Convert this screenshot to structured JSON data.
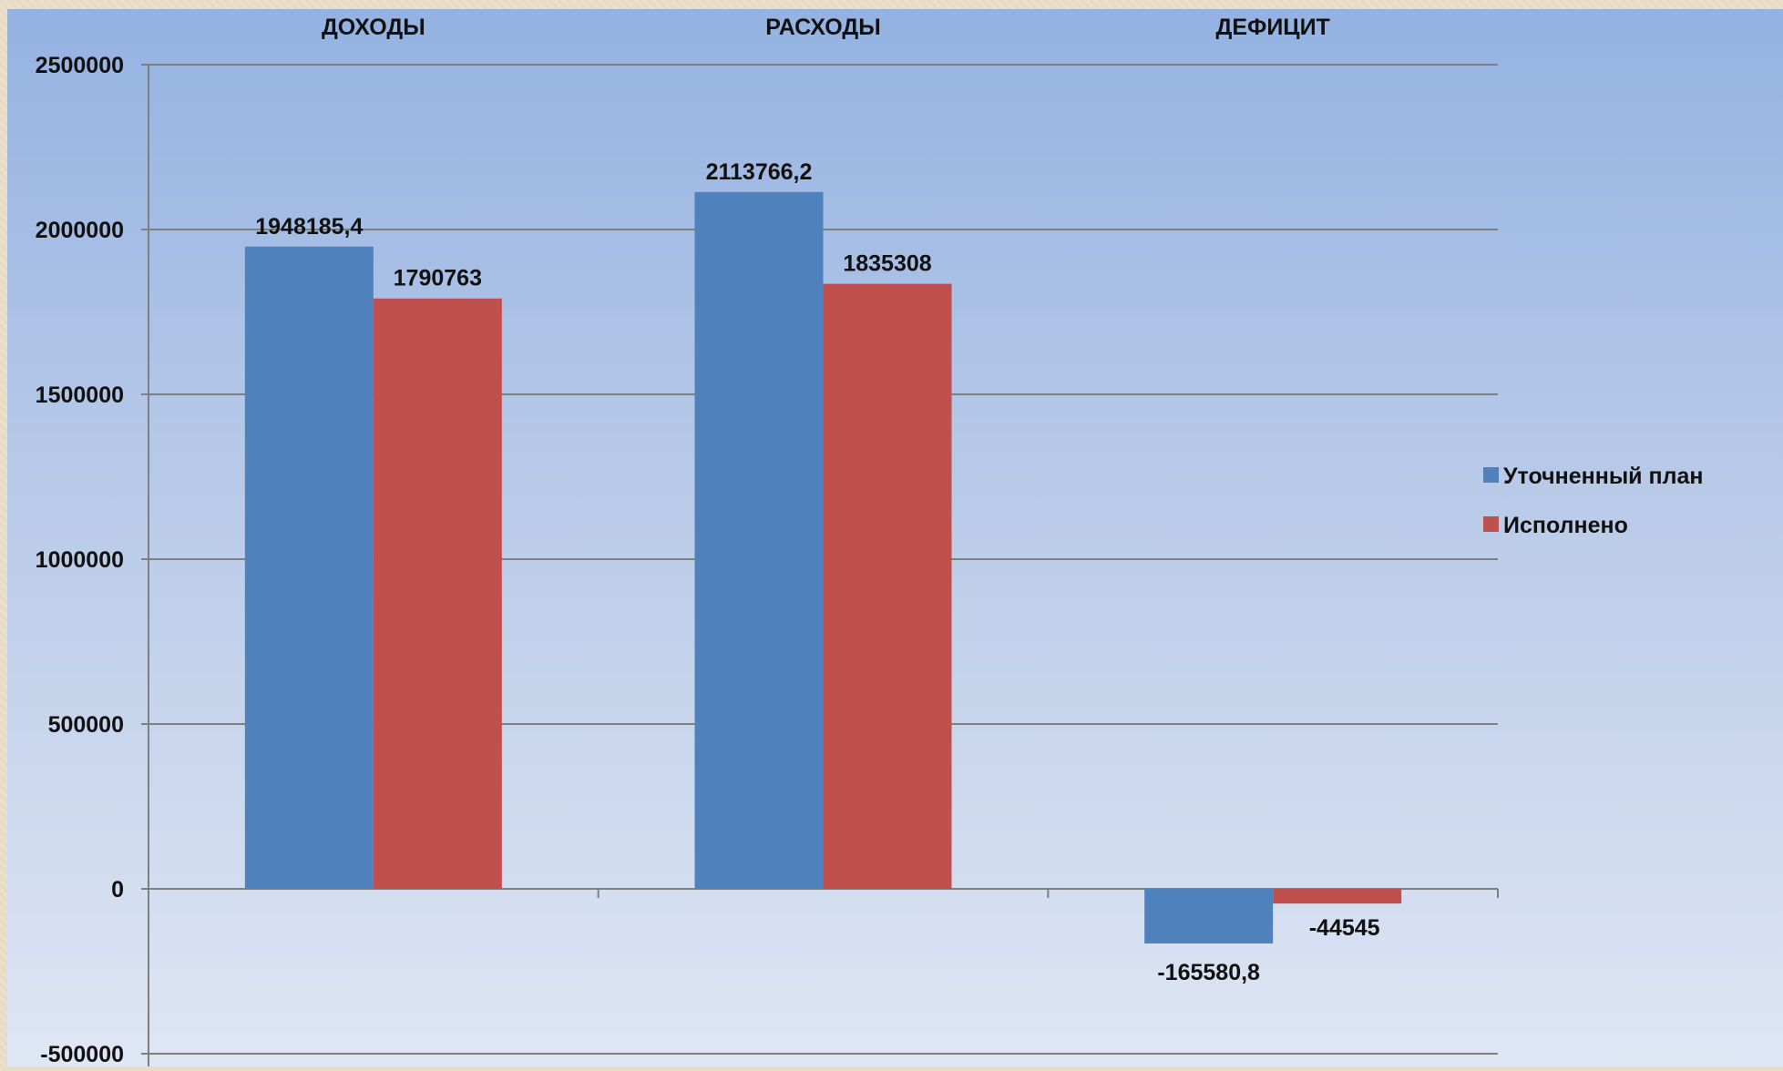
{
  "chart_data": {
    "type": "bar",
    "categories": [
      "ДОХОДЫ",
      "РАСХОДЫ",
      "ДЕФИЦИТ"
    ],
    "category_axis_position": "top",
    "series": [
      {
        "name": "Уточненный план",
        "values": [
          1948185.4,
          2113766.2,
          -165580.8
        ],
        "labels": [
          "1948185,4",
          "2113766,2",
          "-165580,8"
        ],
        "color": "#4f81bd"
      },
      {
        "name": "Исполнено",
        "values": [
          1790763,
          1835308,
          -44545
        ],
        "labels": [
          "1790763",
          "1835308",
          "-44545"
        ],
        "color": "#c0504d"
      }
    ],
    "ylim": [
      -500000,
      2500000
    ],
    "yticks": [
      2500000,
      2000000,
      1500000,
      1000000,
      500000,
      0,
      -500000
    ],
    "ytick_labels": [
      "2500000",
      "2000000",
      "1500000",
      "1000000",
      "500000",
      "0",
      "-500000"
    ],
    "grid": true,
    "legend_position": "right"
  }
}
